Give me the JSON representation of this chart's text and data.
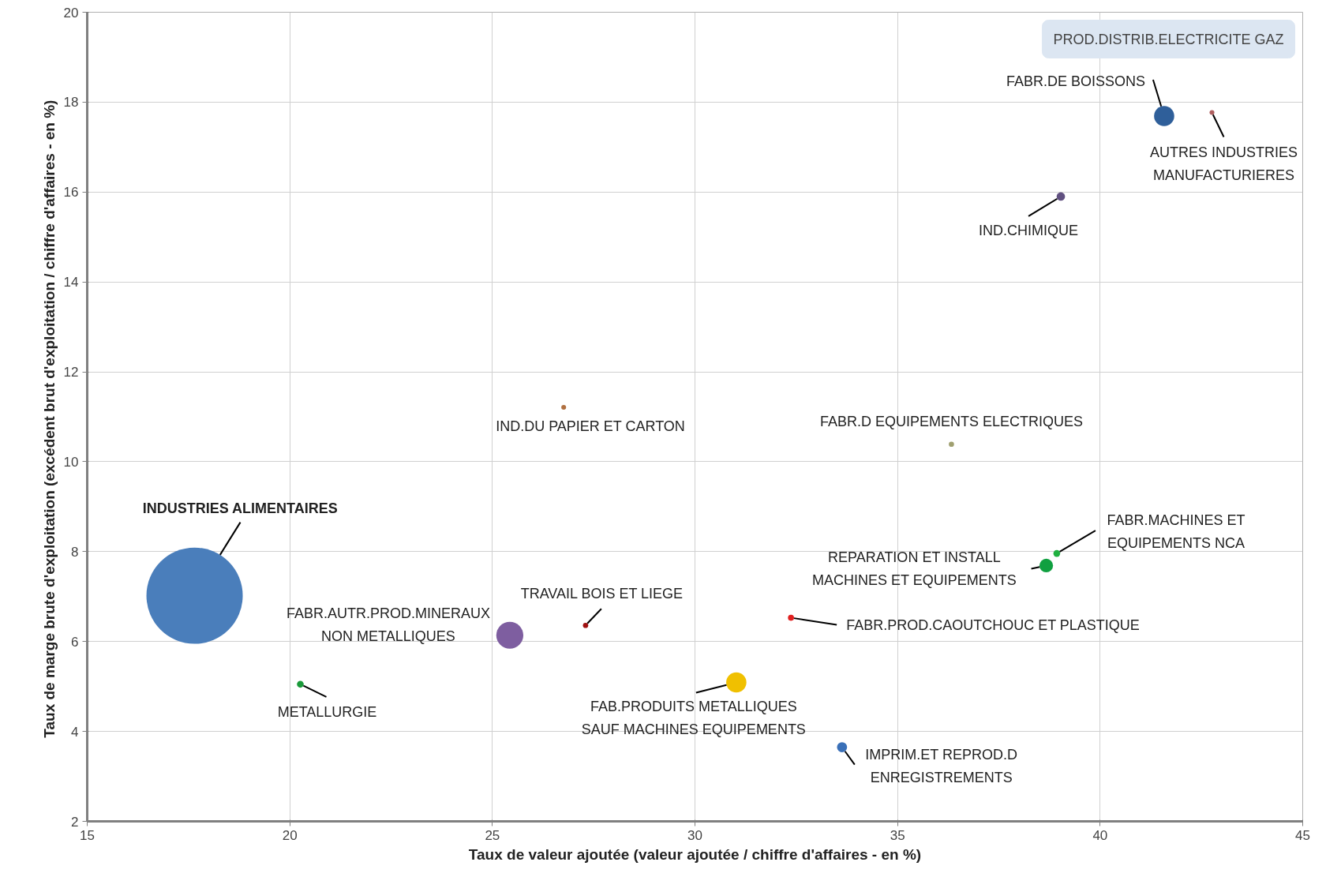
{
  "chart_data": {
    "type": "bubble",
    "xlabel": "Taux de valeur ajoutée (valeur ajoutée / chiffre d'affaires - en %)",
    "ylabel": "Taux de marge brute d'exploitation (excédent brut d'exploitation / chiffre d'affaires  - en %)",
    "xlim": [
      15,
      45
    ],
    "ylim": [
      2,
      20
    ],
    "xticks": [
      15,
      20,
      25,
      30,
      35,
      40,
      45
    ],
    "yticks": [
      2,
      4,
      6,
      8,
      10,
      12,
      14,
      16,
      18,
      20
    ],
    "grid": true,
    "annotations": [
      "PROD.DISTRIB.ELECTRICITE GAZ"
    ],
    "series": [
      {
        "name": "INDUSTRIES ALIMENTAIRES",
        "color": "#4a7ebb",
        "x": [
          17.65
        ],
        "values": [
          7.02
        ],
        "sizes": [
          1
        ]
      },
      {
        "name": "FABR.AUTR.PROD.MINERAUX\nNON METALLIQUES",
        "color": "#7e5ea0",
        "x": [
          25.43
        ],
        "values": [
          6.14
        ],
        "sizes": [
          0.079
        ]
      },
      {
        "name": "METALLURGIE",
        "color": "#1a9a3a",
        "x": [
          20.26
        ],
        "values": [
          5.05
        ],
        "sizes": [
          0.005
        ]
      },
      {
        "name": "TRAVAIL BOIS ET LIEGE",
        "color": "#a01010",
        "x": [
          27.3
        ],
        "values": [
          6.36
        ],
        "sizes": [
          0.003
        ]
      },
      {
        "name": "IND.DU PAPIER ET CARTON",
        "color": "#b07040",
        "x": [
          26.76
        ],
        "values": [
          11.21
        ],
        "sizes": [
          0.0025
        ]
      },
      {
        "name": "FAB.PRODUITS METALLIQUES\nSAUF MACHINES EQUIPEMENTS",
        "color": "#f0c000",
        "x": [
          31.02
        ],
        "values": [
          5.09
        ],
        "sizes": [
          0.044
        ]
      },
      {
        "name": "FABR.PROD.CAOUTCHOUC ET PLASTIQUE",
        "color": "#e02020",
        "x": [
          32.37
        ],
        "values": [
          6.53
        ],
        "sizes": [
          0.004
        ]
      },
      {
        "name": "IMPRIM.ET REPROD.D\nENREGISTREMENTS",
        "color": "#3a70b8",
        "x": [
          33.63
        ],
        "values": [
          3.65
        ],
        "sizes": [
          0.011
        ]
      },
      {
        "name": "FABR.D EQUIPEMENTS ELECTRIQUES",
        "color": "#a0a070",
        "x": [
          36.33
        ],
        "values": [
          10.39
        ],
        "sizes": [
          0.003
        ]
      },
      {
        "name": "REPARATION ET INSTALL\nMACHINES ET EQUIPEMENTS",
        "color": "#10a040",
        "x": [
          38.67
        ],
        "values": [
          7.69
        ],
        "sizes": [
          0.02
        ]
      },
      {
        "name": "FABR.MACHINES ET\nEQUIPEMENTS NCA",
        "color": "#20b040",
        "x": [
          38.93
        ],
        "values": [
          7.96
        ],
        "sizes": [
          0.005
        ]
      },
      {
        "name": "IND.CHIMIQUE",
        "color": "#605080",
        "x": [
          39.03
        ],
        "values": [
          15.9
        ],
        "sizes": [
          0.0077
        ]
      },
      {
        "name": "FABR.DE BOISSONS",
        "color": "#2f5f9a",
        "x": [
          41.58
        ],
        "values": [
          17.69
        ],
        "sizes": [
          0.044
        ]
      },
      {
        "name": "AUTRES INDUSTRIES\nMANUFACTURIERES",
        "color": "#b06060",
        "x": [
          42.76
        ],
        "values": [
          17.77
        ],
        "sizes": [
          0.0025
        ]
      }
    ]
  }
}
